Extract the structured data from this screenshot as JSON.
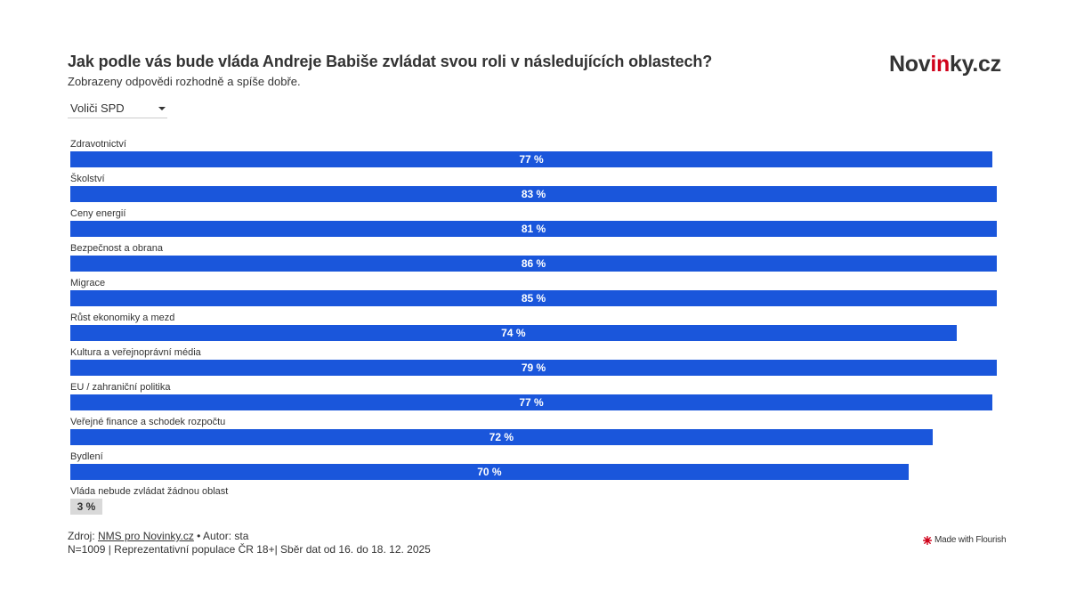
{
  "header": {
    "title": "Jak podle vás bude vláda Andreje Babiše zvládat svou roli v následujících oblastech?",
    "subtitle": "Zobrazeny odpovědi rozhodně a spíše dobře.",
    "logo_main": "Nov",
    "logo_accent": "in",
    "logo_tail": "ky.cz"
  },
  "filter": {
    "selected": "Voliči SPD"
  },
  "chart_data": {
    "type": "bar",
    "orientation": "horizontal",
    "title": "Jak podle vás bude vláda Andreje Babiše zvládat svou roli v následujících oblastech?",
    "subtitle": "Zobrazeny odpovědi rozhodně a spíše dobře.",
    "categories": [
      "Zdravotnictví",
      "Školství",
      "Ceny energií",
      "Bezpečnost a obrana",
      "Migrace",
      "Růst ekonomiky a mezd",
      "Kultura a veřejnoprávní média",
      "EU / zahraniční politika",
      "Veřejné finance a schodek rozpočtu",
      "Bydlení",
      "Vláda nebude zvládat žádnou oblast"
    ],
    "values": [
      77,
      83,
      81,
      86,
      85,
      74,
      79,
      77,
      72,
      70,
      3
    ],
    "value_labels": [
      "77 %",
      "83 %",
      "81 %",
      "86 %",
      "85 %",
      "74 %",
      "79 %",
      "77 %",
      "72 %",
      "70 %",
      "3 %"
    ],
    "colors": [
      "#1a56db",
      "#1a56db",
      "#1a56db",
      "#1a56db",
      "#1a56db",
      "#1a56db",
      "#1a56db",
      "#1a56db",
      "#1a56db",
      "#1a56db",
      "#d9d9d9"
    ],
    "unit": "%"
  },
  "footer": {
    "source_prefix": "Zdroj: ",
    "source_link": "NMS pro Novinky.cz",
    "author": " • Autor: sta",
    "note": "N=1009 | Reprezentativní populace ČR 18+| Sběr dat od 16. do 18. 12. 2025",
    "made_with": "Made with Flourish"
  },
  "colors": {
    "bar": "#1a56db",
    "bar_muted": "#d9d9d9",
    "accent": "#d0021b"
  }
}
